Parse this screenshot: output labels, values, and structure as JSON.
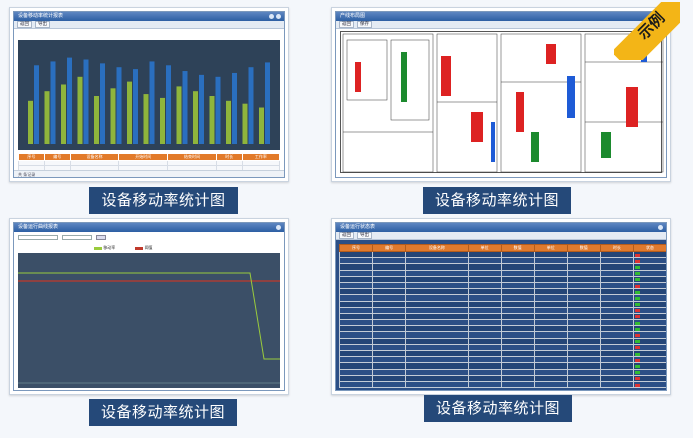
{
  "captions": [
    "设备移动率统计图",
    "设备移动率统计图",
    "设备移动率统计图",
    "设备移动率统计图"
  ],
  "stamp_text": "示例",
  "panel1": {
    "window_title": "设备移动率统计报表",
    "toolbar": [
      "返回",
      "导出"
    ],
    "table_headers": [
      "序号",
      "编号",
      "设备名称",
      "开始时间",
      "结束时间",
      "时长",
      "工作率"
    ],
    "status_text": "共 条记录"
  },
  "panel2": {
    "window_title": "产线布局图",
    "toolbar": [
      "返回",
      "保存"
    ]
  },
  "panel3": {
    "window_title": "设备运行曲线报表",
    "legend": [
      "移动率",
      "阈值"
    ]
  },
  "panel4": {
    "window_title": "设备运行状态表",
    "toolbar": [
      "返回",
      "导出"
    ],
    "table_headers": [
      "序号",
      "编号",
      "设备名称",
      "单位",
      "数值",
      "单位",
      "数值",
      "时长",
      "状态"
    ]
  },
  "colors": {
    "caption_bg": "#254979",
    "bar_green": "#8fb53c",
    "bar_blue": "#2a6fbf",
    "threshold_red": "#c0392b",
    "line_green": "#9acb3c",
    "stamp": "#f3b517"
  }
}
